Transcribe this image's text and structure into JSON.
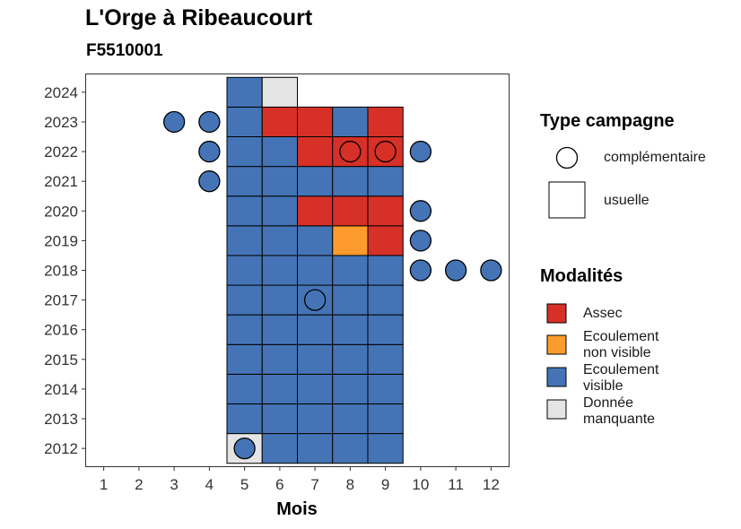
{
  "title": "L'Orge à Ribeaucourt",
  "subtitle": "F5510001",
  "chart_data": {
    "type": "heatmap",
    "xlabel": "Mois",
    "ylabel": "",
    "x_ticks": [
      1,
      2,
      3,
      4,
      5,
      6,
      7,
      8,
      9,
      10,
      11,
      12
    ],
    "y_ticks": [
      2012,
      2013,
      2014,
      2015,
      2016,
      2017,
      2018,
      2019,
      2020,
      2021,
      2022,
      2023,
      2024
    ],
    "xlim": [
      0.5,
      12.5
    ],
    "ylim": [
      2011.4,
      2024.6
    ],
    "grid": false,
    "legend_position": "right",
    "colors": {
      "Assec": "#d73027",
      "Ecoulement non visible": "#fd9c2c",
      "Ecoulement visible": "#4574b6",
      "Donnée manquante": "#e5e5e5"
    },
    "tiles_usuelle": [
      {
        "x": 5,
        "y": 2012,
        "modalite": "Donnée manquante"
      },
      {
        "x": 6,
        "y": 2012,
        "modalite": "Ecoulement visible"
      },
      {
        "x": 7,
        "y": 2012,
        "modalite": "Ecoulement visible"
      },
      {
        "x": 8,
        "y": 2012,
        "modalite": "Ecoulement visible"
      },
      {
        "x": 9,
        "y": 2012,
        "modalite": "Ecoulement visible"
      },
      {
        "x": 5,
        "y": 2013,
        "modalite": "Ecoulement visible"
      },
      {
        "x": 6,
        "y": 2013,
        "modalite": "Ecoulement visible"
      },
      {
        "x": 7,
        "y": 2013,
        "modalite": "Ecoulement visible"
      },
      {
        "x": 8,
        "y": 2013,
        "modalite": "Ecoulement visible"
      },
      {
        "x": 9,
        "y": 2013,
        "modalite": "Ecoulement visible"
      },
      {
        "x": 5,
        "y": 2014,
        "modalite": "Ecoulement visible"
      },
      {
        "x": 6,
        "y": 2014,
        "modalite": "Ecoulement visible"
      },
      {
        "x": 7,
        "y": 2014,
        "modalite": "Ecoulement visible"
      },
      {
        "x": 8,
        "y": 2014,
        "modalite": "Ecoulement visible"
      },
      {
        "x": 9,
        "y": 2014,
        "modalite": "Ecoulement visible"
      },
      {
        "x": 5,
        "y": 2015,
        "modalite": "Ecoulement visible"
      },
      {
        "x": 6,
        "y": 2015,
        "modalite": "Ecoulement visible"
      },
      {
        "x": 7,
        "y": 2015,
        "modalite": "Ecoulement visible"
      },
      {
        "x": 8,
        "y": 2015,
        "modalite": "Ecoulement visible"
      },
      {
        "x": 9,
        "y": 2015,
        "modalite": "Ecoulement visible"
      },
      {
        "x": 5,
        "y": 2016,
        "modalite": "Ecoulement visible"
      },
      {
        "x": 6,
        "y": 2016,
        "modalite": "Ecoulement visible"
      },
      {
        "x": 7,
        "y": 2016,
        "modalite": "Ecoulement visible"
      },
      {
        "x": 8,
        "y": 2016,
        "modalite": "Ecoulement visible"
      },
      {
        "x": 9,
        "y": 2016,
        "modalite": "Ecoulement visible"
      },
      {
        "x": 5,
        "y": 2017,
        "modalite": "Ecoulement visible"
      },
      {
        "x": 6,
        "y": 2017,
        "modalite": "Ecoulement visible"
      },
      {
        "x": 7,
        "y": 2017,
        "modalite": "Ecoulement visible"
      },
      {
        "x": 8,
        "y": 2017,
        "modalite": "Ecoulement visible"
      },
      {
        "x": 9,
        "y": 2017,
        "modalite": "Ecoulement visible"
      },
      {
        "x": 5,
        "y": 2018,
        "modalite": "Ecoulement visible"
      },
      {
        "x": 6,
        "y": 2018,
        "modalite": "Ecoulement visible"
      },
      {
        "x": 7,
        "y": 2018,
        "modalite": "Ecoulement visible"
      },
      {
        "x": 8,
        "y": 2018,
        "modalite": "Ecoulement visible"
      },
      {
        "x": 9,
        "y": 2018,
        "modalite": "Ecoulement visible"
      },
      {
        "x": 5,
        "y": 2019,
        "modalite": "Ecoulement visible"
      },
      {
        "x": 6,
        "y": 2019,
        "modalite": "Ecoulement visible"
      },
      {
        "x": 7,
        "y": 2019,
        "modalite": "Ecoulement visible"
      },
      {
        "x": 8,
        "y": 2019,
        "modalite": "Ecoulement non visible"
      },
      {
        "x": 9,
        "y": 2019,
        "modalite": "Assec"
      },
      {
        "x": 5,
        "y": 2020,
        "modalite": "Ecoulement visible"
      },
      {
        "x": 6,
        "y": 2020,
        "modalite": "Ecoulement visible"
      },
      {
        "x": 7,
        "y": 2020,
        "modalite": "Assec"
      },
      {
        "x": 8,
        "y": 2020,
        "modalite": "Assec"
      },
      {
        "x": 9,
        "y": 2020,
        "modalite": "Assec"
      },
      {
        "x": 5,
        "y": 2021,
        "modalite": "Ecoulement visible"
      },
      {
        "x": 6,
        "y": 2021,
        "modalite": "Ecoulement visible"
      },
      {
        "x": 7,
        "y": 2021,
        "modalite": "Ecoulement visible"
      },
      {
        "x": 8,
        "y": 2021,
        "modalite": "Ecoulement visible"
      },
      {
        "x": 9,
        "y": 2021,
        "modalite": "Ecoulement visible"
      },
      {
        "x": 5,
        "y": 2022,
        "modalite": "Ecoulement visible"
      },
      {
        "x": 6,
        "y": 2022,
        "modalite": "Ecoulement visible"
      },
      {
        "x": 7,
        "y": 2022,
        "modalite": "Assec"
      },
      {
        "x": 8,
        "y": 2022,
        "modalite": "Assec"
      },
      {
        "x": 9,
        "y": 2022,
        "modalite": "Assec"
      },
      {
        "x": 5,
        "y": 2023,
        "modalite": "Ecoulement visible"
      },
      {
        "x": 6,
        "y": 2023,
        "modalite": "Assec"
      },
      {
        "x": 7,
        "y": 2023,
        "modalite": "Assec"
      },
      {
        "x": 8,
        "y": 2023,
        "modalite": "Ecoulement visible"
      },
      {
        "x": 9,
        "y": 2023,
        "modalite": "Assec"
      },
      {
        "x": 5,
        "y": 2024,
        "modalite": "Ecoulement visible"
      },
      {
        "x": 6,
        "y": 2024,
        "modalite": "Donnée manquante"
      }
    ],
    "points_complementaire": [
      {
        "x": 5,
        "y": 2012,
        "modalite": "Ecoulement visible"
      },
      {
        "x": 7,
        "y": 2017,
        "modalite": "Ecoulement visible"
      },
      {
        "x": 10,
        "y": 2018,
        "modalite": "Ecoulement visible"
      },
      {
        "x": 11,
        "y": 2018,
        "modalite": "Ecoulement visible"
      },
      {
        "x": 12,
        "y": 2018,
        "modalite": "Ecoulement visible"
      },
      {
        "x": 10,
        "y": 2019,
        "modalite": "Ecoulement visible"
      },
      {
        "x": 10,
        "y": 2020,
        "modalite": "Ecoulement visible"
      },
      {
        "x": 4,
        "y": 2021,
        "modalite": "Ecoulement visible"
      },
      {
        "x": 4,
        "y": 2022,
        "modalite": "Ecoulement visible"
      },
      {
        "x": 8,
        "y": 2022,
        "modalite": "Assec"
      },
      {
        "x": 9,
        "y": 2022,
        "modalite": "Assec"
      },
      {
        "x": 10,
        "y": 2022,
        "modalite": "Ecoulement visible"
      },
      {
        "x": 3,
        "y": 2023,
        "modalite": "Ecoulement visible"
      },
      {
        "x": 4,
        "y": 2023,
        "modalite": "Ecoulement visible"
      }
    ],
    "legend_type": {
      "title": "Type campagne",
      "items": [
        "complémentaire",
        "usuelle"
      ]
    },
    "legend_modalites": {
      "title": "Modalités",
      "items": [
        {
          "label": "Assec",
          "key": "Assec"
        },
        {
          "label": "Ecoulement\nnon visible",
          "key": "Ecoulement non visible"
        },
        {
          "label": "Ecoulement\nvisible",
          "key": "Ecoulement visible"
        },
        {
          "label": "Donnée\nmanquante",
          "key": "Donnée manquante"
        }
      ]
    }
  }
}
